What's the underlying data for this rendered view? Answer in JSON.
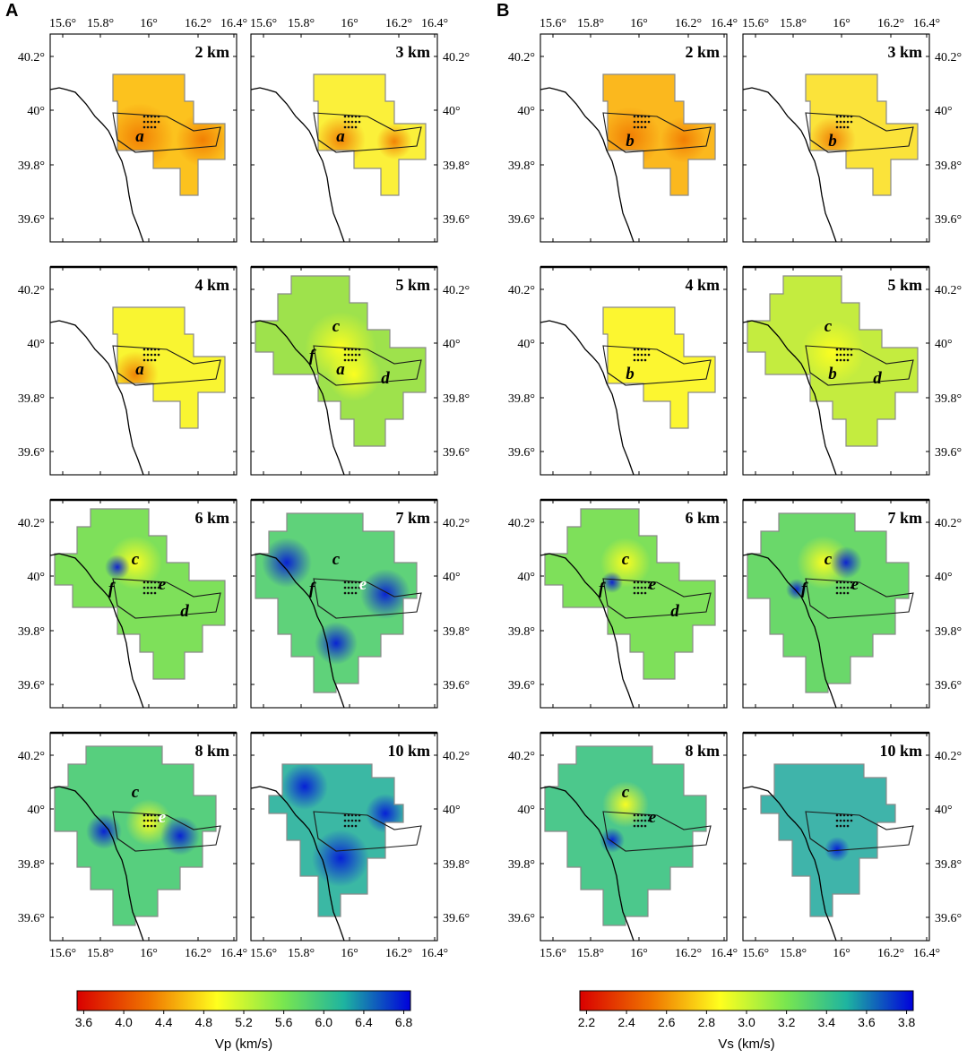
{
  "figure": {
    "panel_letters": [
      "A",
      "B"
    ]
  },
  "axes": {
    "lon_ticks": [
      "15.6°",
      "15.8°",
      "16°",
      "16.2°",
      "16.4°"
    ],
    "lat_ticks": [
      "40.2°",
      "40°",
      "39.8°",
      "39.6°"
    ]
  },
  "maps": [
    {
      "group": "A",
      "depth": "2 km",
      "labels": [
        {
          "t": "a"
        }
      ]
    },
    {
      "group": "A",
      "depth": "3 km",
      "labels": [
        {
          "t": "a"
        }
      ]
    },
    {
      "group": "A",
      "depth": "4 km",
      "labels": [
        {
          "t": "a"
        }
      ]
    },
    {
      "group": "A",
      "depth": "5 km",
      "labels": [
        {
          "t": "c"
        },
        {
          "t": "f"
        },
        {
          "t": "a"
        },
        {
          "t": "d"
        }
      ]
    },
    {
      "group": "A",
      "depth": "6 km",
      "labels": [
        {
          "t": "c"
        },
        {
          "t": "e"
        },
        {
          "t": "f"
        },
        {
          "t": "d"
        }
      ]
    },
    {
      "group": "A",
      "depth": "7 km",
      "labels": [
        {
          "t": "c"
        },
        {
          "t": "f"
        },
        {
          "t": "e"
        }
      ]
    },
    {
      "group": "A",
      "depth": "8 km",
      "labels": [
        {
          "t": "c"
        },
        {
          "t": "e"
        }
      ]
    },
    {
      "group": "A",
      "depth": "10 km",
      "labels": []
    },
    {
      "group": "B",
      "depth": "2 km",
      "labels": [
        {
          "t": "b"
        }
      ]
    },
    {
      "group": "B",
      "depth": "3 km",
      "labels": [
        {
          "t": "b"
        }
      ]
    },
    {
      "group": "B",
      "depth": "4 km",
      "labels": [
        {
          "t": "b"
        }
      ]
    },
    {
      "group": "B",
      "depth": "5 km",
      "labels": [
        {
          "t": "c"
        },
        {
          "t": "b"
        },
        {
          "t": "d"
        }
      ]
    },
    {
      "group": "B",
      "depth": "6 km",
      "labels": [
        {
          "t": "c"
        },
        {
          "t": "e"
        },
        {
          "t": "f"
        },
        {
          "t": "d"
        }
      ]
    },
    {
      "group": "B",
      "depth": "7 km",
      "labels": [
        {
          "t": "c"
        },
        {
          "t": "f"
        },
        {
          "t": "e"
        }
      ]
    },
    {
      "group": "B",
      "depth": "8 km",
      "labels": [
        {
          "t": "c"
        },
        {
          "t": "e"
        }
      ]
    },
    {
      "group": "B",
      "depth": "10 km",
      "labels": []
    }
  ],
  "colorbars": [
    {
      "group": "A",
      "title": "Vp (km/s)",
      "ticks": [
        "3.6",
        "4.0",
        "4.4",
        "4.8",
        "5.2",
        "5.6",
        "6.0",
        "6.4",
        "6.8"
      ]
    },
    {
      "group": "B",
      "title": "Vs (km/s)",
      "ticks": [
        "2.2",
        "2.4",
        "2.6",
        "2.8",
        "3.0",
        "3.2",
        "3.4",
        "3.6",
        "3.8"
      ]
    }
  ],
  "colors": {
    "scale": [
      "#d90000",
      "#f07800",
      "#ffff1e",
      "#78e650",
      "#1eb4a0",
      "#0000dc"
    ]
  }
}
